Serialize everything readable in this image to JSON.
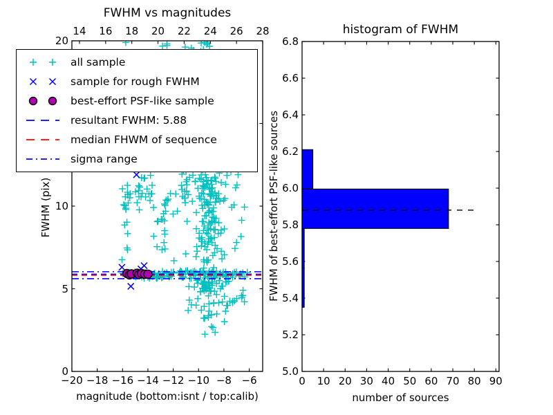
{
  "figure": {
    "background": "#ffffff"
  },
  "chart_data": [
    {
      "type": "scatter",
      "title": "FWHM vs magnitudes",
      "xlabel": "magnitude (bottom:isnt / top:calib)",
      "ylabel": "FWHM (pix)",
      "xlim": [
        -20,
        -4.94
      ],
      "ylim": [
        0,
        20
      ],
      "top_xlim": [
        13.42,
        28.0
      ],
      "x_ticks": {
        "values": [
          -20,
          -18,
          -16,
          -14,
          -12,
          -10,
          -8,
          -6
        ],
        "labels": [
          "−20",
          "−18",
          "−16",
          "−14",
          "−12",
          "−10",
          "−8",
          "−6"
        ]
      },
      "top_ticks": {
        "values": [
          14,
          16,
          18,
          20,
          22,
          24,
          26,
          28
        ],
        "labels": [
          "14",
          "16",
          "18",
          "20",
          "22",
          "24",
          "26",
          "28"
        ]
      },
      "y_ticks": {
        "values": [
          0,
          5,
          10,
          15,
          20
        ],
        "labeled_values": [
          0,
          5,
          10,
          20
        ],
        "labels": [
          "0",
          "5",
          "10",
          "20"
        ]
      },
      "series": [
        {
          "name": "all sample",
          "marker": "plus",
          "color": "#00bfbf",
          "clusters": [
            {
              "n": 10,
              "x": [
                -11.1,
                -8.8
              ],
              "y": [
                19.35,
                19.98
              ]
            },
            {
              "n": 3,
              "x": [
                -12.9,
                -12.45
              ],
              "y": [
                19.55,
                19.95
              ]
            },
            {
              "n": 16,
              "x": [
                -16.05,
                -15.55
              ],
              "y": [
                6.55,
                11.8
              ]
            },
            {
              "n": 24,
              "x": [
                -15.5,
                -13.4
              ],
              "y": [
                9.6,
                11.9
              ]
            },
            {
              "n": 8,
              "x": [
                -12.95,
                -12.6
              ],
              "y": [
                6.9,
                9.8
              ]
            },
            {
              "n": 9,
              "x": [
                -12.75,
                -11.3
              ],
              "y": [
                9.1,
                10.8
              ]
            },
            {
              "n": 9,
              "x": [
                -13.6,
                -10.8
              ],
              "y": [
                6.6,
                9.5
              ]
            },
            {
              "n": 40,
              "x": [
                -11.4,
                -8.6
              ],
              "y": [
                10.2,
                12.4
              ]
            },
            {
              "n": 135,
              "x": [
                -10.3,
                -8.2
              ],
              "y": [
                4.8,
                12.0
              ],
              "xbias": "center",
              "ybias": "low"
            },
            {
              "n": 16,
              "x": [
                -8.6,
                -6.2
              ],
              "y": [
                9.9,
                12.2
              ]
            },
            {
              "n": 9,
              "x": [
                -8.7,
                -6.6
              ],
              "y": [
                6.5,
                9.7
              ]
            },
            {
              "n": 8,
              "x": [
                -16.1,
                -14.6
              ],
              "y": [
                5.7,
                6.05
              ]
            },
            {
              "n": 88,
              "x": [
                -14.6,
                -8.0
              ],
              "y": [
                5.62,
                6.1
              ]
            },
            {
              "n": 20,
              "x": [
                -8.0,
                -6.0
              ],
              "y": [
                5.65,
                6.05
              ]
            },
            {
              "n": 42,
              "x": [
                -10.9,
                -7.4
              ],
              "y": [
                3.2,
                5.5
              ],
              "ybias": "high"
            },
            {
              "n": 8,
              "x": [
                -9.6,
                -7.9
              ],
              "y": [
                2.2,
                4.2
              ]
            },
            {
              "n": 8,
              "x": [
                -7.4,
                -6.0
              ],
              "y": [
                4.1,
                5.2
              ]
            }
          ],
          "points": [
            [
              -15.75,
              19.9
            ],
            [
              -9.5,
              2.25
            ],
            [
              -7.0,
              7.8
            ],
            [
              -6.5,
              4.6
            ]
          ]
        },
        {
          "name": "sample for rough FWHM",
          "marker": "x",
          "color": "#0000ff",
          "points": [
            [
              -14.9,
              11.9
            ],
            [
              -16.05,
              6.3
            ],
            [
              -15.35,
              5.15
            ],
            [
              -14.3,
              6.4
            ],
            [
              -14.55,
              6.2
            ],
            [
              -13.95,
              5.9
            ],
            [
              -14.9,
              5.82
            ]
          ]
        },
        {
          "name": "best-effort PSF-like sample",
          "marker": "circle",
          "fill": "#b000b0",
          "edge": "#000000",
          "points": [
            [
              -15.65,
              5.92
            ],
            [
              -15.45,
              5.84
            ],
            [
              -15.3,
              5.9
            ],
            [
              -14.85,
              5.94
            ],
            [
              -14.7,
              5.86
            ],
            [
              -14.5,
              5.92
            ],
            [
              -14.25,
              5.88
            ],
            [
              -14.0,
              5.88
            ]
          ]
        }
      ],
      "lines": [
        {
          "name": "resultant-fwhm",
          "label": "resultant FWHM: 5.88",
          "y": 5.88,
          "dash": "dashed",
          "color": "#0000ff"
        },
        {
          "name": "median-fwhm",
          "label": "median FHWM of sequence",
          "y": 5.82,
          "dash": "dashed",
          "color": "#ff0000"
        },
        {
          "name": "sigma-range",
          "label": "sigma range",
          "y": [
            5.61,
            6.03
          ],
          "dash": "dashdot",
          "color": "#0000ff"
        }
      ]
    },
    {
      "type": "bar",
      "orientation": "horizontal",
      "title": "histogram of FWHM",
      "xlabel": "number of sources",
      "ylabel": "FWHM of best-effort PSF-like sources",
      "xlim": [
        0,
        91.5
      ],
      "ylim": [
        5.0,
        6.8
      ],
      "x_ticks": {
        "values": [
          0,
          10,
          20,
          30,
          40,
          50,
          60,
          70,
          80,
          90
        ],
        "labels": [
          "0",
          "10",
          "20",
          "30",
          "40",
          "50",
          "60",
          "70",
          "80",
          "90"
        ]
      },
      "y_ticks": {
        "values": [
          5.0,
          5.2,
          5.4,
          5.6,
          5.8,
          6.0,
          6.2,
          6.4,
          6.6,
          6.8
        ],
        "labels": [
          "5.0",
          "5.2",
          "5.4",
          "5.6",
          "5.8",
          "6.0",
          "6.2",
          "6.4",
          "6.6",
          "6.8"
        ]
      },
      "bins": {
        "edges": [
          5.35,
          5.565,
          5.78,
          5.995,
          6.21
        ],
        "counts": [
          1,
          1,
          68,
          5
        ]
      },
      "bar_color": "#0000ff",
      "bar_edge": "#000000",
      "marker_line": {
        "y": 5.88,
        "x_end": 82,
        "color": "#000000",
        "dash": "dashed"
      }
    }
  ],
  "legend": {
    "items": [
      {
        "label": "all sample",
        "symbol": "plus-markers",
        "color": "#00bfbf"
      },
      {
        "label": "sample for rough FWHM",
        "symbol": "x-markers",
        "color": "#0000ff"
      },
      {
        "label": "best-effort PSF-like sample",
        "symbol": "circle-markers",
        "color": "#b000b0",
        "edge": "#000000"
      },
      {
        "label": "resultant FWHM: 5.88",
        "symbol": "dashed-line",
        "color": "#0000ff"
      },
      {
        "label": "median FHWM of sequence",
        "symbol": "dashed-line",
        "color": "#ff0000"
      },
      {
        "label": "sigma range",
        "symbol": "dashdot-line",
        "color": "#0000ff"
      }
    ]
  }
}
